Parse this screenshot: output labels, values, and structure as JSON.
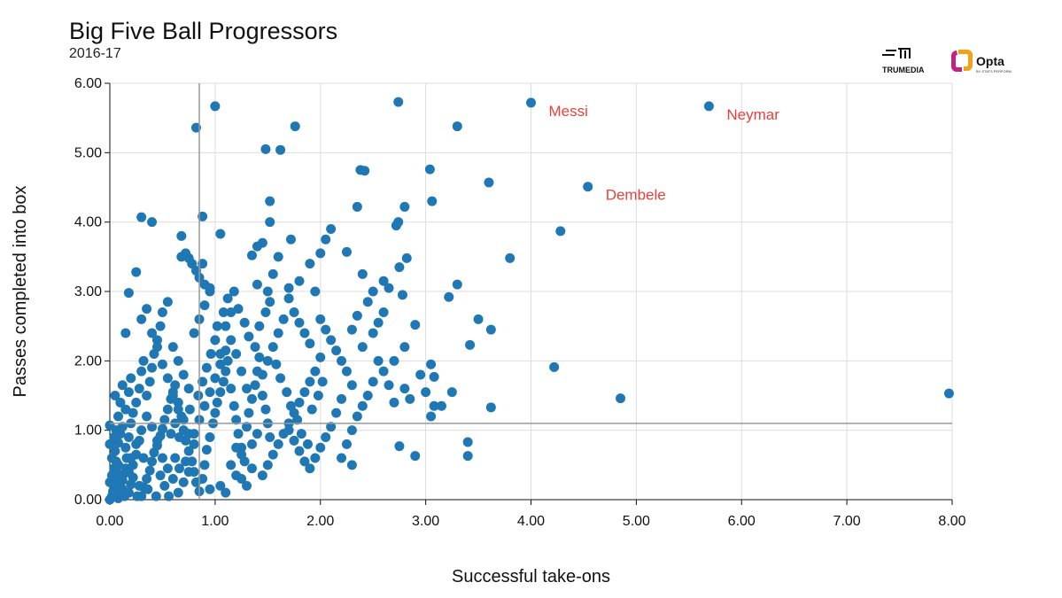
{
  "chart_data": {
    "type": "scatter",
    "title": "Big Five Ball Progressors",
    "subtitle": "2016-17",
    "xlabel": "Successful take-ons",
    "ylabel": "Passes completed into box",
    "xlim": [
      0,
      8
    ],
    "ylim": [
      0,
      6
    ],
    "x_ticks": [
      "0.00",
      "1.00",
      "2.00",
      "3.00",
      "4.00",
      "5.00",
      "6.00",
      "7.00",
      "8.00"
    ],
    "y_ticks": [
      "0.00",
      "1.00",
      "2.00",
      "3.00",
      "4.00",
      "5.00",
      "6.00"
    ],
    "reference_lines": {
      "x": 0.85,
      "y": 1.1
    },
    "grid": true,
    "point_color": "#1f77b4",
    "annotation_color": "#e8413c",
    "points": [
      [
        0.0,
        0.0
      ],
      [
        0.02,
        0.05
      ],
      [
        0.03,
        0.12
      ],
      [
        0.05,
        0.2
      ],
      [
        0.04,
        0.3
      ],
      [
        0.06,
        0.4
      ],
      [
        0.08,
        0.5
      ],
      [
        0.1,
        0.08
      ],
      [
        0.12,
        0.15
      ],
      [
        0.0,
        0.25
      ],
      [
        0.02,
        0.35
      ],
      [
        0.04,
        0.45
      ],
      [
        0.06,
        0.55
      ],
      [
        0.08,
        0.02
      ],
      [
        0.1,
        0.28
      ],
      [
        0.14,
        0.38
      ],
      [
        0.16,
        0.6
      ],
      [
        0.18,
        0.1
      ],
      [
        0.2,
        0.22
      ],
      [
        0.22,
        0.32
      ],
      [
        0.05,
        0.7
      ],
      [
        0.08,
        0.82
      ],
      [
        0.1,
        0.95
      ],
      [
        0.12,
        1.05
      ],
      [
        0.15,
        0.75
      ],
      [
        0.18,
        0.9
      ],
      [
        0.2,
        1.1
      ],
      [
        0.22,
        1.25
      ],
      [
        0.25,
        0.65
      ],
      [
        0.28,
        0.85
      ],
      [
        0.3,
        0.05
      ],
      [
        0.32,
        0.18
      ],
      [
        0.35,
        0.3
      ],
      [
        0.38,
        0.42
      ],
      [
        0.4,
        0.55
      ],
      [
        0.42,
        0.68
      ],
      [
        0.45,
        0.78
      ],
      [
        0.48,
        0.92
      ],
      [
        0.5,
        1.02
      ],
      [
        0.52,
        1.15
      ],
      [
        0.55,
        1.3
      ],
      [
        0.58,
        1.45
      ],
      [
        0.6,
        1.55
      ],
      [
        0.62,
        1.65
      ],
      [
        0.65,
        1.4
      ],
      [
        0.68,
        1.2
      ],
      [
        0.7,
        1.0
      ],
      [
        0.72,
        0.85
      ],
      [
        0.75,
        0.7
      ],
      [
        0.78,
        0.55
      ],
      [
        0.8,
        0.4
      ],
      [
        0.82,
        0.25
      ],
      [
        0.85,
        0.12
      ],
      [
        0.88,
        0.3
      ],
      [
        0.9,
        0.5
      ],
      [
        0.92,
        0.72
      ],
      [
        0.95,
        0.9
      ],
      [
        0.98,
        1.1
      ],
      [
        1.0,
        1.25
      ],
      [
        1.02,
        1.4
      ],
      [
        1.05,
        1.55
      ],
      [
        1.08,
        1.7
      ],
      [
        1.1,
        1.85
      ],
      [
        1.12,
        2.0
      ],
      [
        1.15,
        1.6
      ],
      [
        1.18,
        1.35
      ],
      [
        1.2,
        1.15
      ],
      [
        1.22,
        0.95
      ],
      [
        1.25,
        0.75
      ],
      [
        1.28,
        0.55
      ],
      [
        1.3,
        1.05
      ],
      [
        1.32,
        1.25
      ],
      [
        1.35,
        1.45
      ],
      [
        1.38,
        1.65
      ],
      [
        1.4,
        1.85
      ],
      [
        1.42,
        2.05
      ],
      [
        1.45,
        1.5
      ],
      [
        1.48,
        1.3
      ],
      [
        1.5,
        1.1
      ],
      [
        1.52,
        0.9
      ],
      [
        0.35,
        1.5
      ],
      [
        0.38,
        1.7
      ],
      [
        0.4,
        1.9
      ],
      [
        0.42,
        2.1
      ],
      [
        0.45,
        2.3
      ],
      [
        0.48,
        2.5
      ],
      [
        0.5,
        2.7
      ],
      [
        0.55,
        2.85
      ],
      [
        0.6,
        2.2
      ],
      [
        0.65,
        2.0
      ],
      [
        0.7,
        1.8
      ],
      [
        0.75,
        1.6
      ],
      [
        0.8,
        2.4
      ],
      [
        0.85,
        2.6
      ],
      [
        0.9,
        2.8
      ],
      [
        0.95,
        3.0
      ],
      [
        1.0,
        2.3
      ],
      [
        1.05,
        2.1
      ],
      [
        1.1,
        2.5
      ],
      [
        1.15,
        2.7
      ],
      [
        0.25,
        1.4
      ],
      [
        0.28,
        1.6
      ],
      [
        0.3,
        1.85
      ],
      [
        0.32,
        2.0
      ],
      [
        0.15,
        1.3
      ],
      [
        0.18,
        1.55
      ],
      [
        0.2,
        1.75
      ],
      [
        0.1,
        1.4
      ],
      [
        0.08,
        1.2
      ],
      [
        0.12,
        1.65
      ],
      [
        0.02,
        0.6
      ],
      [
        0.0,
        0.8
      ],
      [
        0.04,
        0.9
      ],
      [
        0.06,
        1.0
      ],
      [
        0.0,
        1.07
      ],
      [
        0.05,
        1.5
      ],
      [
        0.15,
        2.4
      ],
      [
        0.18,
        2.98
      ],
      [
        0.25,
        3.28
      ],
      [
        0.3,
        2.6
      ],
      [
        0.35,
        2.75
      ],
      [
        0.4,
        2.4
      ],
      [
        0.45,
        2.2
      ],
      [
        0.5,
        1.95
      ],
      [
        0.55,
        1.75
      ],
      [
        0.6,
        1.5
      ],
      [
        0.65,
        1.3
      ],
      [
        0.7,
        1.15
      ],
      [
        0.75,
        0.95
      ],
      [
        0.8,
        0.8
      ],
      [
        0.3,
        4.07
      ],
      [
        0.4,
        4.0
      ],
      [
        0.68,
        3.8
      ],
      [
        0.72,
        3.55
      ],
      [
        0.75,
        3.48
      ],
      [
        0.78,
        3.4
      ],
      [
        0.68,
        3.5
      ],
      [
        0.82,
        3.3
      ],
      [
        0.88,
        3.4
      ],
      [
        0.85,
        3.2
      ],
      [
        0.9,
        3.1
      ],
      [
        0.95,
        3.05
      ],
      [
        0.88,
        4.08
      ],
      [
        1.05,
        3.83
      ],
      [
        0.82,
        5.36
      ],
      [
        1.0,
        5.67
      ],
      [
        1.48,
        5.05
      ],
      [
        1.62,
        5.04
      ],
      [
        1.76,
        5.38
      ],
      [
        1.52,
        4.3
      ],
      [
        1.52,
        4.0
      ],
      [
        1.4,
        3.65
      ],
      [
        1.45,
        3.7
      ],
      [
        1.72,
        3.75
      ],
      [
        1.6,
        3.5
      ],
      [
        1.35,
        3.52
      ],
      [
        1.55,
        3.25
      ],
      [
        1.4,
        3.1
      ],
      [
        1.5,
        3.0
      ],
      [
        1.7,
        3.05
      ],
      [
        1.8,
        3.15
      ],
      [
        1.9,
        3.4
      ],
      [
        1.95,
        3.0
      ],
      [
        2.05,
        3.75
      ],
      [
        2.1,
        3.9
      ],
      [
        2.0,
        3.55
      ],
      [
        2.25,
        3.57
      ],
      [
        2.35,
        4.22
      ],
      [
        2.38,
        4.75
      ],
      [
        2.42,
        4.74
      ],
      [
        2.4,
        3.25
      ],
      [
        2.5,
        3.0
      ],
      [
        2.6,
        3.15
      ],
      [
        2.65,
        3.05
      ],
      [
        2.72,
        3.95
      ],
      [
        2.74,
        4.0
      ],
      [
        2.8,
        4.22
      ],
      [
        2.82,
        3.48
      ],
      [
        2.75,
        3.35
      ],
      [
        2.78,
        2.95
      ],
      [
        2.74,
        5.73
      ],
      [
        3.3,
        5.38
      ],
      [
        3.04,
        4.76
      ],
      [
        3.06,
        4.3
      ],
      [
        3.22,
        2.92
      ],
      [
        3.3,
        3.1
      ],
      [
        3.5,
        2.6
      ],
      [
        3.62,
        2.45
      ],
      [
        3.42,
        2.23
      ],
      [
        3.05,
        1.95
      ],
      [
        3.15,
        1.35
      ],
      [
        3.0,
        1.55
      ],
      [
        3.05,
        1.2
      ],
      [
        3.25,
        1.55
      ],
      [
        3.08,
        1.77
      ],
      [
        3.4,
        0.83
      ],
      [
        3.4,
        0.63
      ],
      [
        2.9,
        0.63
      ],
      [
        2.75,
        0.77
      ],
      [
        3.6,
        4.57
      ],
      [
        3.8,
        3.48
      ],
      [
        4.28,
        3.87
      ],
      [
        4.22,
        1.91
      ],
      [
        4.85,
        1.46
      ],
      [
        7.97,
        1.53
      ],
      [
        4.0,
        5.72
      ],
      [
        5.69,
        5.67
      ],
      [
        4.54,
        4.51
      ],
      [
        3.62,
        1.33
      ],
      [
        3.08,
        1.35
      ],
      [
        2.9,
        2.52
      ],
      [
        2.8,
        2.2
      ],
      [
        2.7,
        2.0
      ],
      [
        2.6,
        1.85
      ],
      [
        2.5,
        1.7
      ],
      [
        2.45,
        1.5
      ],
      [
        2.4,
        1.35
      ],
      [
        2.35,
        1.2
      ],
      [
        2.3,
        1.0
      ],
      [
        2.25,
        0.8
      ],
      [
        2.2,
        0.6
      ],
      [
        2.3,
        0.5
      ],
      [
        2.0,
        2.6
      ],
      [
        2.05,
        2.45
      ],
      [
        2.1,
        2.3
      ],
      [
        2.15,
        2.15
      ],
      [
        2.2,
        2.0
      ],
      [
        2.25,
        1.85
      ],
      [
        2.0,
        2.05
      ],
      [
        1.95,
        1.85
      ],
      [
        1.9,
        1.7
      ],
      [
        1.85,
        1.55
      ],
      [
        1.8,
        1.4
      ],
      [
        1.75,
        1.25
      ],
      [
        1.7,
        1.1
      ],
      [
        1.65,
        0.95
      ],
      [
        1.6,
        0.8
      ],
      [
        1.55,
        0.65
      ],
      [
        1.5,
        0.5
      ],
      [
        1.45,
        0.35
      ],
      [
        1.9,
        2.25
      ],
      [
        1.85,
        2.4
      ],
      [
        1.8,
        2.55
      ],
      [
        1.75,
        2.7
      ],
      [
        1.7,
        2.9
      ],
      [
        1.65,
        2.6
      ],
      [
        1.6,
        2.4
      ],
      [
        1.55,
        2.2
      ],
      [
        1.5,
        2.0
      ],
      [
        1.45,
        1.8
      ],
      [
        2.4,
        2.2
      ],
      [
        2.5,
        2.4
      ],
      [
        2.55,
        2.55
      ],
      [
        2.6,
        2.7
      ],
      [
        2.45,
        2.85
      ],
      [
        2.35,
        2.65
      ],
      [
        2.3,
        2.45
      ],
      [
        2.55,
        2.0
      ],
      [
        2.65,
        1.65
      ],
      [
        2.7,
        1.4
      ],
      [
        2.8,
        1.6
      ],
      [
        2.85,
        1.45
      ],
      [
        2.95,
        1.8
      ],
      [
        2.3,
        1.65
      ],
      [
        2.2,
        1.45
      ],
      [
        2.15,
        1.25
      ],
      [
        2.1,
        1.05
      ],
      [
        2.05,
        0.9
      ],
      [
        2.0,
        0.75
      ],
      [
        1.95,
        0.6
      ],
      [
        1.9,
        0.45
      ],
      [
        1.85,
        0.55
      ],
      [
        1.8,
        0.7
      ],
      [
        1.75,
        0.85
      ],
      [
        1.7,
        1.0
      ],
      [
        1.3,
        0.2
      ],
      [
        1.2,
        0.35
      ],
      [
        1.1,
        0.1
      ],
      [
        1.05,
        0.2
      ],
      [
        0.95,
        0.15
      ],
      [
        1.15,
        0.5
      ],
      [
        1.25,
        0.65
      ],
      [
        1.35,
        0.8
      ],
      [
        1.4,
        0.95
      ],
      [
        1.35,
        0.45
      ],
      [
        1.25,
        0.3
      ],
      [
        1.2,
        0.75
      ],
      [
        1.3,
        1.6
      ],
      [
        1.25,
        1.85
      ],
      [
        1.2,
        2.1
      ],
      [
        1.15,
        2.3
      ],
      [
        1.1,
        2.15
      ],
      [
        1.05,
        1.95
      ],
      [
        1.0,
        1.75
      ],
      [
        0.95,
        1.55
      ],
      [
        0.9,
        1.35
      ],
      [
        0.85,
        1.15
      ],
      [
        0.8,
        0.95
      ],
      [
        0.75,
        0.4
      ],
      [
        0.7,
        0.25
      ],
      [
        0.65,
        0.1
      ],
      [
        0.6,
        0.3
      ],
      [
        0.55,
        0.45
      ],
      [
        0.5,
        0.6
      ],
      [
        0.45,
        0.85
      ],
      [
        0.4,
        1.05
      ],
      [
        0.35,
        1.2
      ],
      [
        0.3,
        1.0
      ],
      [
        0.25,
        0.8
      ],
      [
        0.2,
        0.6
      ],
      [
        0.15,
        0.45
      ],
      [
        0.12,
        0.28
      ],
      [
        0.1,
        0.18
      ],
      [
        0.08,
        0.35
      ],
      [
        0.06,
        0.22
      ],
      [
        0.04,
        0.1
      ],
      [
        0.02,
        0.25
      ],
      [
        0.14,
        0.05
      ],
      [
        0.18,
        0.4
      ],
      [
        0.22,
        0.5
      ],
      [
        0.26,
        0.05
      ],
      [
        0.28,
        0.2
      ],
      [
        0.32,
        0.6
      ],
      [
        0.36,
        0.15
      ],
      [
        0.44,
        0.05
      ],
      [
        0.48,
        0.35
      ],
      [
        0.52,
        0.2
      ],
      [
        0.56,
        0.05
      ],
      [
        0.62,
        0.6
      ],
      [
        0.66,
        0.45
      ],
      [
        0.58,
        0.95
      ],
      [
        0.62,
        1.1
      ],
      [
        0.66,
        0.9
      ],
      [
        0.72,
        0.55
      ],
      [
        0.76,
        1.3
      ],
      [
        0.84,
        1.5
      ],
      [
        0.88,
        1.7
      ],
      [
        0.92,
        1.9
      ],
      [
        0.96,
        2.1
      ],
      [
        1.02,
        2.5
      ],
      [
        1.08,
        2.7
      ],
      [
        1.12,
        2.9
      ],
      [
        1.18,
        3.0
      ],
      [
        1.22,
        2.75
      ],
      [
        1.28,
        2.55
      ],
      [
        1.32,
        2.35
      ],
      [
        1.38,
        2.2
      ],
      [
        1.42,
        2.5
      ],
      [
        1.48,
        2.7
      ],
      [
        1.52,
        2.85
      ],
      [
        1.58,
        1.95
      ],
      [
        1.62,
        1.75
      ],
      [
        1.68,
        1.55
      ],
      [
        1.72,
        1.35
      ],
      [
        1.78,
        1.15
      ],
      [
        1.82,
        0.95
      ],
      [
        1.88,
        0.8
      ],
      [
        1.92,
        1.3
      ],
      [
        1.98,
        1.5
      ],
      [
        2.02,
        1.7
      ]
    ],
    "annotations": [
      {
        "text": "Messi",
        "x": 4.0,
        "y": 5.72
      },
      {
        "text": "Neymar",
        "x": 5.69,
        "y": 5.67
      },
      {
        "text": "Dembele",
        "x": 4.54,
        "y": 4.51
      }
    ]
  },
  "logos": {
    "trumedia_text": "TRUMEDIA",
    "opta_text": "Opta",
    "opta_sub": "BY STATS PERFORM"
  }
}
